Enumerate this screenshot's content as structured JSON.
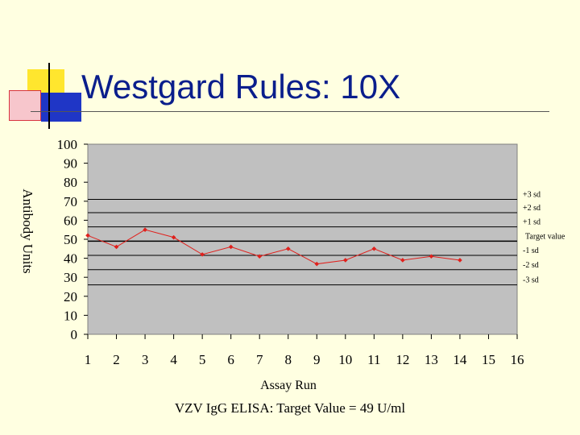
{
  "slide": {
    "title": "Westgard Rules: 10X",
    "footnote": "VZV IgG ELISA: Target Value = 49 U/ml"
  },
  "chart_data": {
    "type": "line",
    "title": "",
    "xlabel": "Assay Run",
    "ylabel": "Antibody Units",
    "x_categories": [
      1,
      2,
      3,
      4,
      5,
      6,
      7,
      8,
      9,
      10,
      11,
      12,
      13,
      14,
      15,
      16
    ],
    "series": [
      {
        "name": "",
        "x": [
          1,
          2,
          3,
          4,
          5,
          6,
          7,
          8,
          9,
          10,
          11,
          12,
          13,
          14
        ],
        "values": [
          52,
          46,
          55,
          51,
          42,
          46,
          41,
          45,
          37,
          39,
          45,
          39,
          41,
          39
        ]
      }
    ],
    "yticks": [
      0,
      10,
      20,
      30,
      40,
      50,
      60,
      70,
      80,
      90,
      100
    ],
    "ylim": [
      0,
      100
    ],
    "grid": false,
    "reference_lines": [
      {
        "label": "+3 sd",
        "value": 71
      },
      {
        "label": "+2 sd",
        "value": 64
      },
      {
        "label": "+1 sd",
        "value": 56.5
      },
      {
        "label": "Target value",
        "value": 49
      },
      {
        "label": "-1 sd",
        "value": 41.5
      },
      {
        "label": "-2 sd",
        "value": 34
      },
      {
        "label": "-3 sd",
        "value": 26
      }
    ],
    "colors": {
      "plot_bg": "#C0C0C0",
      "series": "#E0201C",
      "reference": "#000000"
    }
  }
}
